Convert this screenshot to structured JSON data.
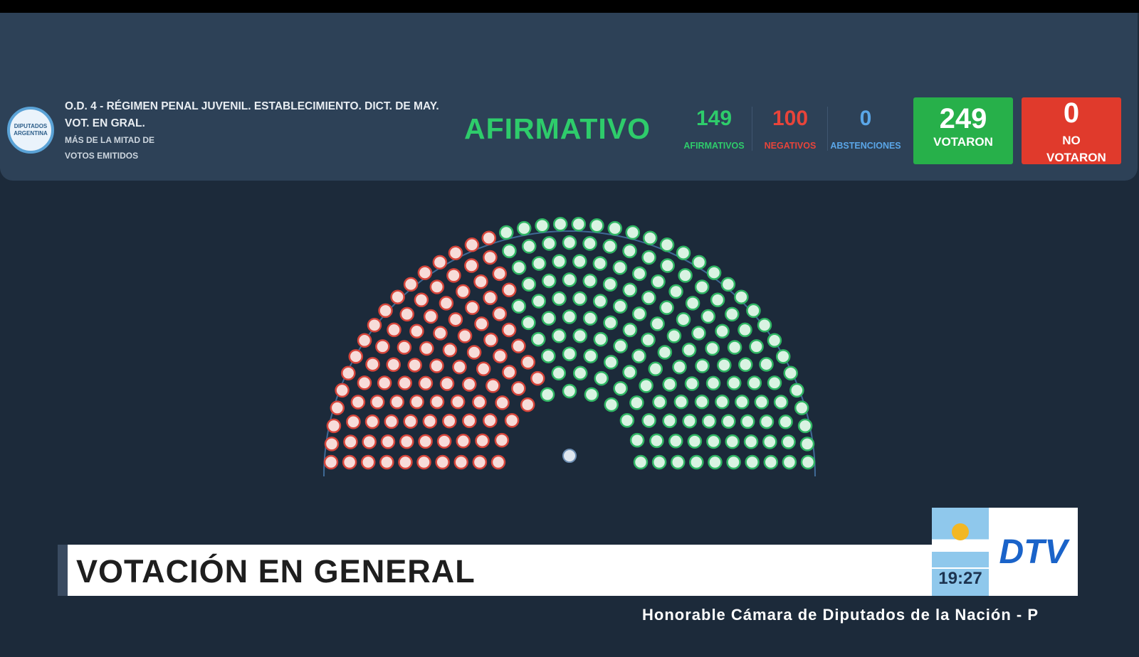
{
  "header": {
    "logo": "DIPUTADOS ARGENTINA",
    "title": "O.D. 4 - RÉGIMEN PENAL JUVENIL. ESTABLECIMIENTO. DICT. DE MAY. VOT. EN GRAL.",
    "subtitle": "MÁS DE LA MITAD DE VOTOS EMITIDOS",
    "result": "AFIRMATIVO"
  },
  "stats": [
    {
      "value": 149,
      "label": "AFIRMATIVOS"
    },
    {
      "value": 100,
      "label": "NEGATIVOS"
    },
    {
      "value": 0,
      "label": "ABSTENCIONES"
    }
  ],
  "votaron": {
    "value": 249,
    "label": "VOTARON"
  },
  "no_votaron": {
    "value": 0,
    "label": "NO VOTARON"
  },
  "banner": {
    "title": "VOTACIÓN EN GENERAL",
    "time": "19:27",
    "channel": "DTV"
  },
  "ticker": "Honorable Cámara de Diputados de la Nación - P"
}
